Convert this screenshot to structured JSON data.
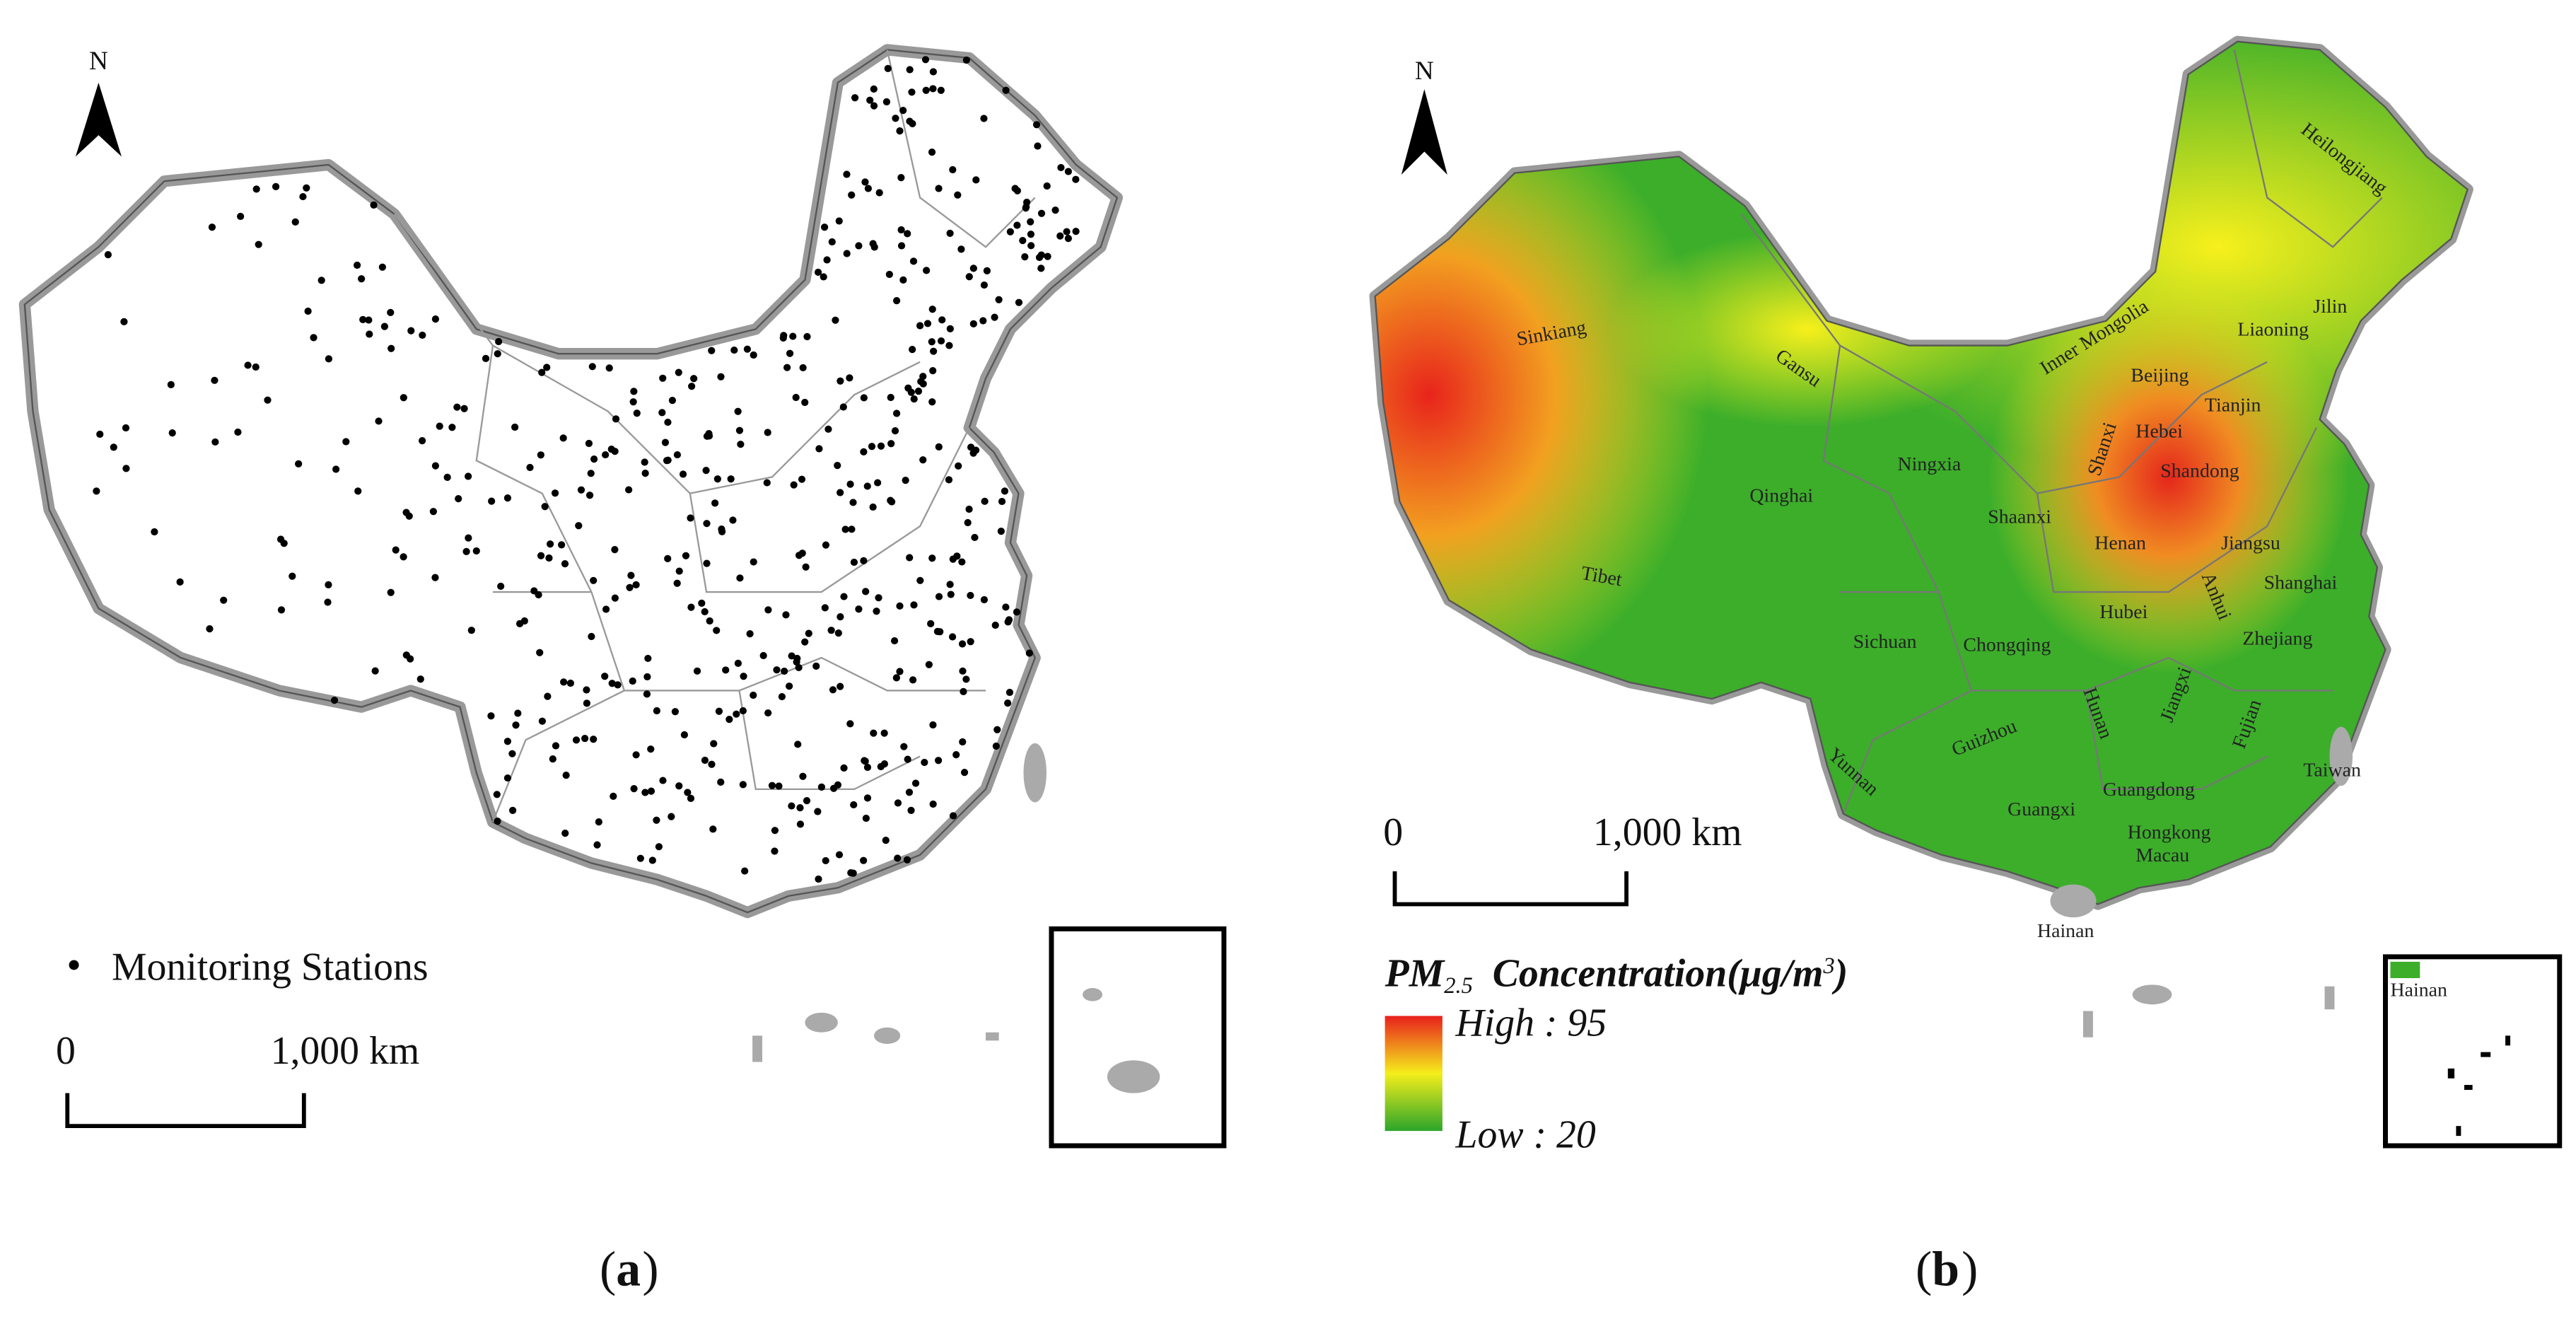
{
  "panel_a": {
    "north": "N",
    "legend": "Monitoring Stations",
    "scale_start": "0",
    "scale_end": "1,000 km",
    "caption_open": "(",
    "caption": "a",
    "caption_close": ")"
  },
  "panel_b": {
    "north": "N",
    "scale_start": "0",
    "scale_end": "1,000 km",
    "legend_title": {
      "main": "PM",
      "sub": "2.5",
      "text": "Concentration(μg/m",
      "sup": "3",
      "close": ")"
    },
    "legend_high": "High : 95",
    "legend_low": "Low : 20",
    "caption_open": "(",
    "caption": "b",
    "caption_close": ")",
    "provinces": [
      "Heilongjiang",
      "Jilin",
      "Liaoning",
      "Inner Mongolia",
      "Sinkiang",
      "Gansu",
      "Beijing",
      "Tianjin",
      "Hebei",
      "Shanxi",
      "Ningxia",
      "Shandong",
      "Qinghai",
      "Shaanxi",
      "Henan",
      "Jiangsu",
      "Anhui",
      "Tibet",
      "Shanghai",
      "Hubei",
      "Sichuan",
      "Chongqing",
      "Zhejiang",
      "Hunan",
      "Jiangxi",
      "Guizhou",
      "Fujian",
      "Taiwan",
      "Yunnan",
      "Guangdong",
      "Guangxi",
      "Hongkong",
      "Macau",
      "Hainan",
      "Hainan"
    ]
  }
}
